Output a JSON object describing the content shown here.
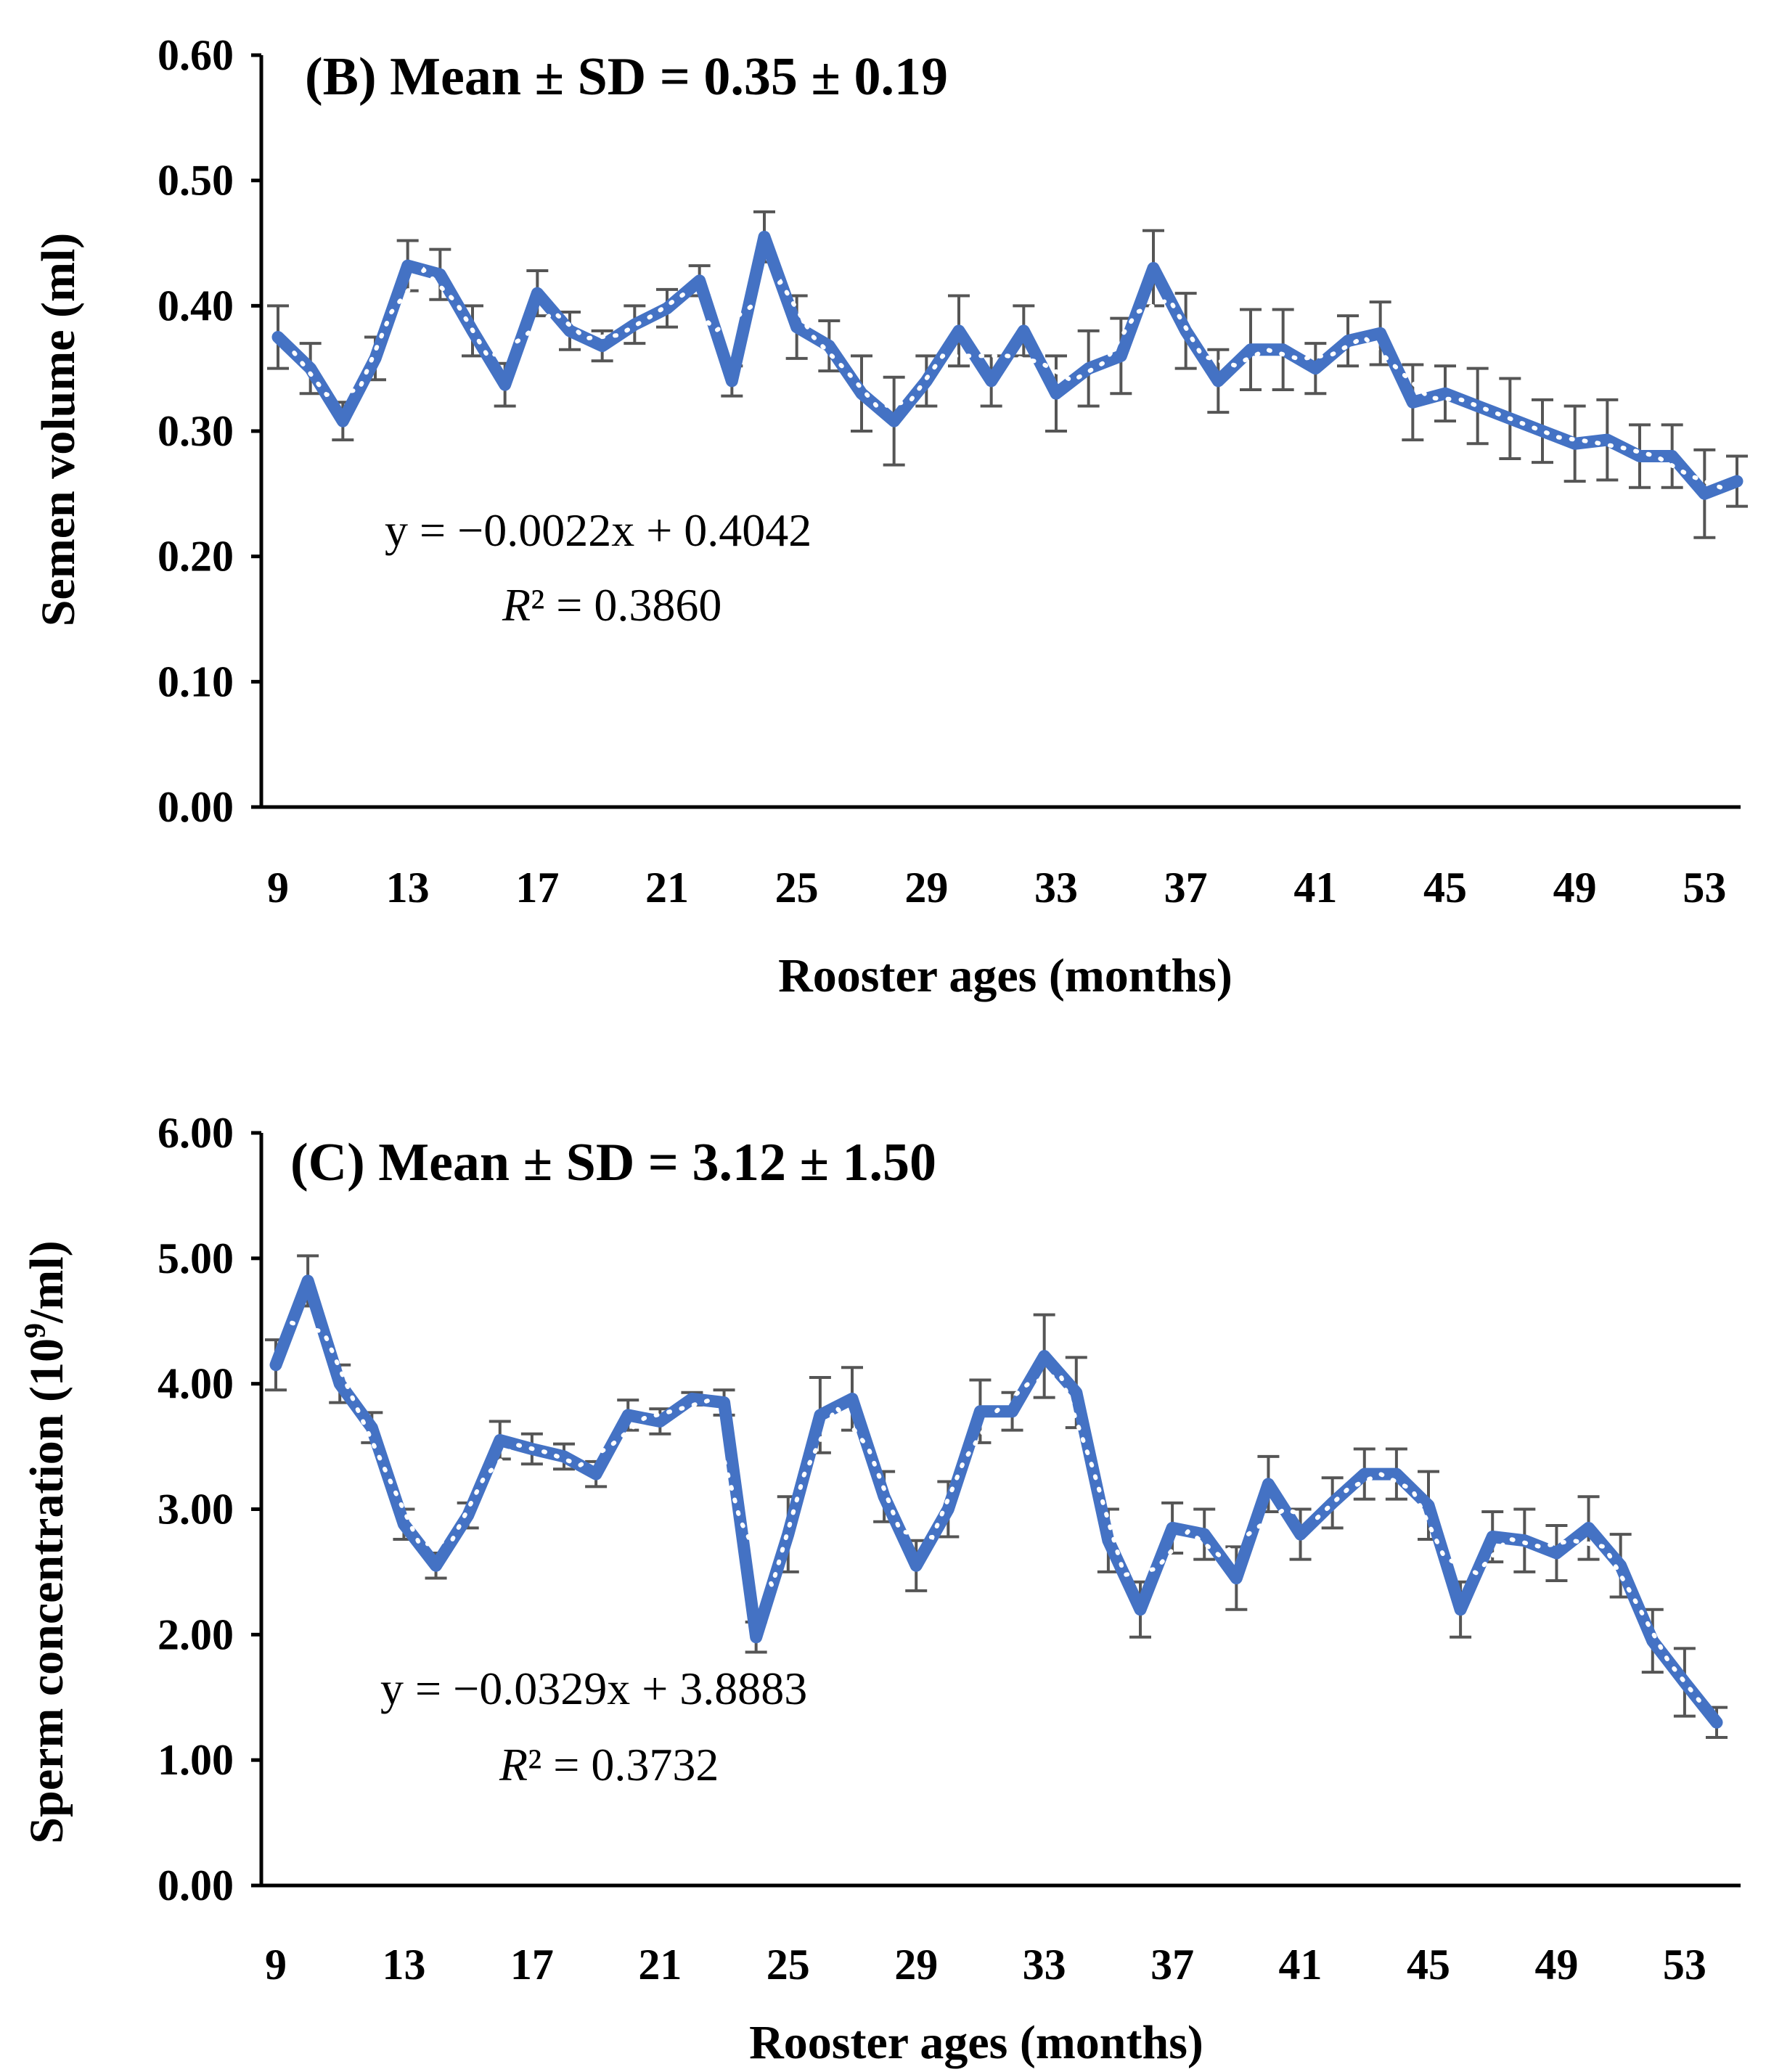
{
  "colors": {
    "series": "#4472C4",
    "error_bar": "#555555",
    "axis": "#000000",
    "trendline": "#ffffff"
  },
  "chart_data": [
    {
      "id": "B",
      "type": "line",
      "title": "(B) Mean ± SD = 0.35 ± 0.19",
      "xlabel": "Rooster ages (months)",
      "ylabel": "Semen volume (ml)",
      "ylim": [
        0,
        0.6
      ],
      "xlim": [
        9,
        54
      ],
      "yticks": [
        "0.00",
        "0.10",
        "0.20",
        "0.30",
        "0.40",
        "0.50",
        "0.60"
      ],
      "xticks": [
        "9",
        "13",
        "17",
        "21",
        "25",
        "29",
        "33",
        "37",
        "41",
        "45",
        "49",
        "53"
      ],
      "grid": false,
      "trendline": {
        "slope": -0.0022,
        "intercept": 0.4042,
        "equation": "y = −0.0022x + 0.4042",
        "r2_label": "R",
        "r2_text": "² = 0.3860"
      },
      "x": [
        9,
        10,
        11,
        12,
        13,
        14,
        15,
        16,
        17,
        18,
        19,
        20,
        21,
        22,
        23,
        24,
        25,
        26,
        27,
        28,
        29,
        30,
        31,
        32,
        33,
        34,
        35,
        36,
        37,
        38,
        39,
        40,
        41,
        42,
        43,
        44,
        45,
        46,
        47,
        48,
        49,
        50,
        51,
        52,
        53,
        54
      ],
      "values": [
        0.375,
        0.35,
        0.308,
        0.358,
        0.432,
        0.425,
        0.38,
        0.337,
        0.41,
        0.38,
        0.368,
        0.385,
        0.398,
        0.42,
        0.34,
        0.455,
        0.383,
        0.368,
        0.33,
        0.308,
        0.34,
        0.38,
        0.34,
        0.38,
        0.33,
        0.35,
        0.36,
        0.43,
        0.38,
        0.34,
        0.365,
        0.365,
        0.35,
        0.372,
        0.378,
        0.323,
        0.33,
        0.32,
        0.31,
        0.3,
        0.29,
        0.293,
        0.28,
        0.28,
        0.25,
        0.26
      ],
      "error": [
        0.025,
        0.02,
        0.015,
        0.017,
        0.02,
        0.02,
        0.02,
        0.017,
        0.018,
        0.015,
        0.012,
        0.015,
        0.015,
        0.012,
        0.012,
        0.02,
        0.025,
        0.02,
        0.03,
        0.035,
        0.02,
        0.028,
        0.02,
        0.02,
        0.03,
        0.03,
        0.03,
        0.03,
        0.03,
        0.025,
        0.032,
        0.032,
        0.02,
        0.02,
        0.025,
        0.03,
        0.022,
        0.03,
        0.032,
        0.025,
        0.03,
        0.032,
        0.025,
        0.025,
        0.035,
        0.02
      ]
    },
    {
      "id": "C",
      "type": "line",
      "title": "(C) Mean ± SD = 3.12 ± 1.50",
      "xlabel": "Rooster ages (months)",
      "ylabel_text": "Sperm concentration (10",
      "ylabel_sup": "9",
      "ylabel_end": "/ml)",
      "ylim": [
        0,
        6
      ],
      "xlim": [
        9,
        54
      ],
      "yticks": [
        "0.00",
        "1.00",
        "2.00",
        "3.00",
        "4.00",
        "5.00",
        "6.00"
      ],
      "xticks": [
        "9",
        "13",
        "17",
        "21",
        "25",
        "29",
        "33",
        "37",
        "41",
        "45",
        "49",
        "53"
      ],
      "grid": false,
      "trendline": {
        "slope": -0.0329,
        "intercept": 3.8883,
        "equation": "y = −0.0329x + 3.8883",
        "r2_label": "R",
        "r2_text": "² = 0.3732"
      },
      "x": [
        9,
        10,
        11,
        12,
        13,
        14,
        15,
        16,
        17,
        18,
        19,
        20,
        21,
        22,
        23,
        24,
        25,
        26,
        27,
        28,
        29,
        30,
        31,
        32,
        33,
        34,
        35,
        36,
        37,
        38,
        39,
        40,
        41,
        42,
        43,
        44,
        45,
        46,
        47,
        48,
        49,
        50,
        51,
        52,
        53,
        54
      ],
      "values": [
        4.15,
        4.82,
        4.0,
        3.65,
        2.88,
        2.55,
        2.95,
        3.55,
        3.48,
        3.42,
        3.28,
        3.75,
        3.7,
        3.88,
        3.85,
        1.98,
        2.8,
        3.75,
        3.88,
        3.1,
        2.55,
        3.0,
        3.78,
        3.78,
        4.22,
        3.93,
        2.75,
        2.2,
        2.85,
        2.8,
        2.45,
        3.2,
        2.8,
        3.05,
        3.28,
        3.28,
        3.03,
        2.2,
        2.78,
        2.75,
        2.65,
        2.85,
        2.55,
        1.95,
        1.62,
        1.3
      ],
      "error": [
        0.2,
        0.2,
        0.15,
        0.12,
        0.12,
        0.1,
        0.1,
        0.15,
        0.12,
        0.1,
        0.1,
        0.12,
        0.1,
        0.05,
        0.1,
        0.12,
        0.3,
        0.3,
        0.25,
        0.2,
        0.2,
        0.22,
        0.25,
        0.15,
        0.33,
        0.28,
        0.25,
        0.22,
        0.2,
        0.2,
        0.25,
        0.22,
        0.2,
        0.2,
        0.2,
        0.2,
        0.27,
        0.22,
        0.2,
        0.25,
        0.22,
        0.25,
        0.25,
        0.25,
        0.27,
        0.12
      ]
    }
  ]
}
